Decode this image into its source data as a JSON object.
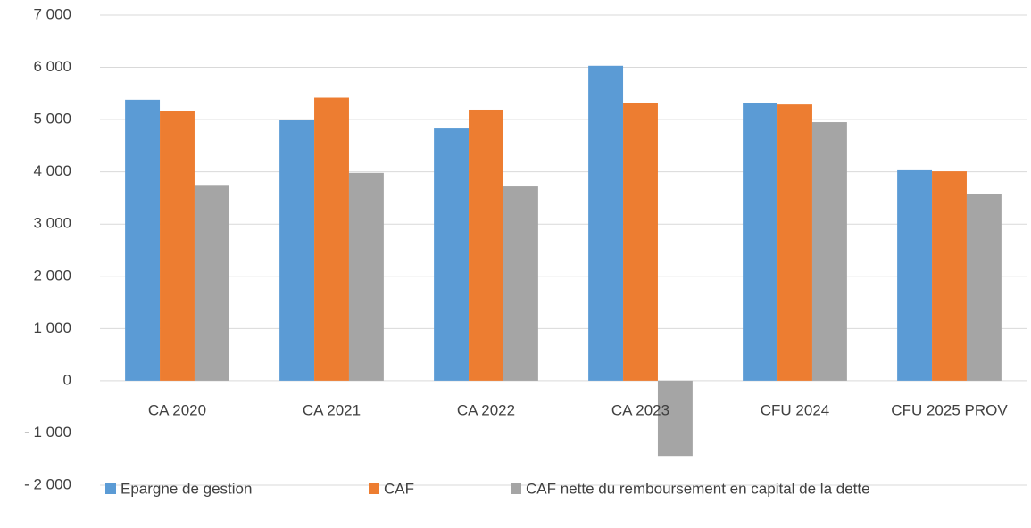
{
  "chart_data": {
    "type": "bar",
    "categories": [
      "CA 2020",
      "CA 2021",
      "CA 2022",
      "CA 2023",
      "CFU 2024",
      "CFU 2025 PROV"
    ],
    "series": [
      {
        "name": "Epargne de gestion",
        "color": "#5b9bd5",
        "values": [
          5380,
          5000,
          4830,
          6030,
          5310,
          4030
        ]
      },
      {
        "name": "CAF",
        "color": "#ed7d31",
        "values": [
          5160,
          5420,
          5190,
          5310,
          5290,
          4010
        ]
      },
      {
        "name": "CAF nette du remboursement en capital de la dette",
        "color": "#a5a5a5",
        "values": [
          3750,
          3980,
          3720,
          -1440,
          4950,
          3580
        ]
      }
    ],
    "ylim": [
      -2000,
      7000
    ],
    "yticks": [
      {
        "value": -2000,
        "label": "- 2 000"
      },
      {
        "value": -1000,
        "label": "- 1 000"
      },
      0,
      {
        "value": 1000,
        "label": "1 000"
      },
      {
        "value": 2000,
        "label": "2 000"
      },
      {
        "value": 3000,
        "label": "3 000"
      },
      {
        "value": 4000,
        "label": "4 000"
      },
      {
        "value": 5000,
        "label": "5 000"
      },
      {
        "value": 6000,
        "label": "6 000"
      },
      {
        "value": 7000,
        "label": "7 000"
      }
    ],
    "grid": true,
    "legend": "bottom"
  }
}
